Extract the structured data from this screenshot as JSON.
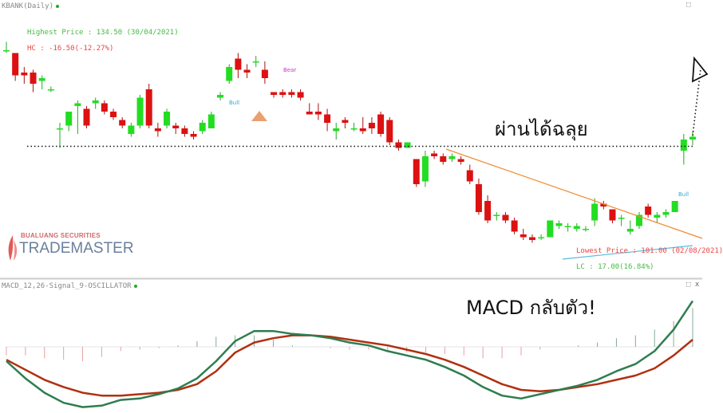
{
  "header": {
    "symbol_title": "KBANK(Daily)",
    "macd_title": "MACD_12,26",
    "signal_title": "Signal_9",
    "osc_title": "OSCILLATOR",
    "panel_buttons": "⬚ x"
  },
  "annotations": {
    "highest_price": "Highest Price : 134.50 (30/04/2021)",
    "hc": "HC : -16.50(-12.27%)",
    "lowest_price": "Lowest Price : 101.00 (02/08/2021)",
    "lc": "LC : 17.00(16.84%)",
    "thai_breakout": "ผ่านได้ฉลุย",
    "macd_turn": "MACD กลับตัว!",
    "bull": "Bull",
    "bear": "Bear"
  },
  "logo": {
    "company": "BUALUANG SECURITIES",
    "product": "TRADEMASTER"
  },
  "colors": {
    "up": "#22dd22",
    "down": "#dd1111",
    "trendline": "#f08a30",
    "support": "#55bbdd",
    "macd": "#2e7d4f",
    "signal": "#b03010",
    "osc_pos": "#88aa99",
    "osc_neg": "#e8a0a0",
    "green_text": "#44bb44",
    "red_text": "#ee4444"
  },
  "chart_data": [
    {
      "type": "candlestick",
      "title": "KBANK(Daily)",
      "ylim": [
        98,
        140
      ],
      "candles": [
        [
          135.0,
          136.5,
          134.5,
          135.0
        ],
        [
          134.5,
          134.5,
          129.5,
          130.5
        ],
        [
          131.0,
          132.0,
          129.0,
          130.5
        ],
        [
          131.0,
          131.5,
          127.5,
          129.0
        ],
        [
          129.5,
          130.5,
          128.0,
          130.0
        ],
        [
          128.0,
          128.5,
          127.5,
          128.0
        ],
        [
          121.0,
          122.0,
          117.5,
          121.0
        ],
        [
          121.5,
          124.0,
          120.5,
          124.0
        ],
        [
          125.0,
          126.0,
          120.0,
          125.5
        ],
        [
          124.5,
          125.0,
          121.0,
          121.5
        ],
        [
          125.5,
          126.5,
          124.5,
          126.0
        ],
        [
          125.5,
          126.0,
          123.5,
          124.0
        ],
        [
          124.0,
          124.5,
          122.5,
          123.0
        ],
        [
          122.5,
          123.0,
          121.0,
          121.5
        ],
        [
          120.0,
          122.0,
          119.5,
          121.5
        ],
        [
          121.5,
          127.0,
          121.0,
          126.5
        ],
        [
          128.0,
          129.0,
          121.0,
          121.5
        ],
        [
          121.0,
          122.0,
          119.5,
          120.5
        ],
        [
          121.5,
          124.5,
          121.0,
          124.0
        ],
        [
          121.5,
          122.0,
          120.0,
          121.0
        ],
        [
          121.0,
          121.5,
          119.5,
          120.0
        ],
        [
          120.0,
          120.5,
          119.0,
          119.5
        ],
        [
          120.5,
          122.5,
          120.0,
          122.0
        ],
        [
          121.0,
          124.0,
          121.0,
          123.5
        ],
        [
          126.5,
          127.5,
          126.0,
          127.0
        ],
        [
          129.5,
          132.5,
          129.0,
          132.0
        ],
        [
          133.5,
          134.5,
          130.0,
          131.5
        ],
        [
          131.5,
          132.5,
          130.0,
          131.0
        ],
        [
          133.0,
          134.0,
          132.0,
          133.0
        ],
        [
          131.5,
          133.0,
          129.0,
          130.0
        ],
        [
          127.5,
          127.5,
          126.5,
          127.0
        ],
        [
          127.5,
          128.0,
          126.5,
          127.0
        ],
        [
          127.5,
          128.0,
          126.5,
          127.0
        ],
        [
          127.5,
          128.0,
          126.0,
          126.5
        ],
        [
          124.0,
          125.5,
          123.5,
          123.5
        ],
        [
          124.0,
          125.5,
          122.5,
          123.5
        ],
        [
          123.5,
          124.5,
          120.5,
          122.0
        ],
        [
          120.5,
          122.0,
          119.0,
          121.0
        ],
        [
          122.5,
          123.0,
          121.0,
          122.0
        ],
        [
          121.0,
          122.0,
          120.5,
          121.0
        ],
        [
          121.0,
          123.0,
          120.0,
          120.5
        ],
        [
          122.0,
          123.0,
          120.0,
          121.0
        ],
        [
          123.5,
          124.0,
          119.5,
          120.0
        ],
        [
          122.5,
          123.0,
          118.0,
          118.5
        ],
        [
          118.5,
          119.0,
          117.0,
          117.5
        ],
        [
          117.5,
          118.5,
          117.5,
          118.5
        ],
        [
          115.5,
          115.5,
          110.5,
          111.0
        ],
        [
          111.5,
          117.0,
          110.5,
          116.0
        ],
        [
          116.5,
          117.0,
          115.5,
          116.0
        ],
        [
          116.0,
          116.5,
          114.5,
          115.0
        ],
        [
          115.5,
          116.5,
          115.0,
          116.0
        ],
        [
          115.5,
          116.0,
          114.5,
          115.0
        ],
        [
          113.5,
          114.5,
          111.0,
          111.5
        ],
        [
          111.0,
          112.0,
          105.5,
          106.0
        ],
        [
          108.0,
          109.0,
          104.0,
          104.5
        ],
        [
          105.5,
          106.0,
          104.5,
          105.5
        ],
        [
          105.5,
          106.0,
          104.0,
          104.5
        ],
        [
          104.5,
          105.0,
          102.0,
          102.5
        ],
        [
          102.0,
          103.0,
          101.0,
          101.5
        ],
        [
          101.5,
          102.0,
          100.5,
          101.0
        ],
        [
          101.5,
          102.0,
          101.0,
          101.5
        ],
        [
          101.5,
          104.5,
          101.5,
          104.5
        ],
        [
          103.5,
          104.5,
          103.0,
          104.0
        ],
        [
          103.5,
          104.0,
          102.5,
          103.5
        ],
        [
          103.0,
          104.0,
          102.5,
          103.5
        ],
        [
          103.0,
          103.5,
          102.5,
          103.0
        ],
        [
          104.5,
          108.5,
          103.5,
          107.5
        ],
        [
          107.5,
          108.0,
          106.5,
          107.0
        ],
        [
          106.5,
          106.5,
          104.0,
          104.5
        ],
        [
          105.0,
          105.5,
          103.5,
          105.0
        ],
        [
          102.5,
          104.5,
          102.0,
          103.0
        ],
        [
          103.5,
          106.0,
          103.0,
          105.5
        ],
        [
          107.0,
          107.5,
          105.0,
          105.5
        ],
        [
          105.0,
          106.0,
          104.0,
          105.5
        ],
        [
          105.5,
          106.5,
          105.0,
          106.0
        ],
        [
          106.0,
          108.0,
          106.0,
          108.0
        ],
        [
          117.0,
          120.0,
          114.5,
          119.0
        ],
        [
          119.0,
          120.5,
          118.0,
          119.5
        ]
      ]
    },
    {
      "type": "line",
      "title": "MACD_12,26 / Signal_9 / OSCILLATOR",
      "ylim": [
        -4.5,
        3.5
      ],
      "series": [
        {
          "name": "MACD_12,26",
          "values": [
            -1.0,
            -2.2,
            -3.2,
            -3.9,
            -4.2,
            -4.1,
            -3.7,
            -3.6,
            -3.3,
            -2.9,
            -2.2,
            -1.0,
            0.4,
            1.1,
            1.1,
            0.9,
            0.8,
            0.6,
            0.3,
            0.1,
            -0.3,
            -0.6,
            -0.9,
            -1.4,
            -2.0,
            -2.8,
            -3.4,
            -3.6,
            -3.3,
            -3.0,
            -2.7,
            -2.3,
            -1.7,
            -1.2,
            -0.3,
            1.2,
            3.2
          ]
        },
        {
          "name": "Signal_9",
          "values": [
            -0.9,
            -1.6,
            -2.3,
            -2.8,
            -3.2,
            -3.4,
            -3.4,
            -3.3,
            -3.2,
            -3.0,
            -2.6,
            -1.7,
            -0.4,
            0.3,
            0.6,
            0.8,
            0.8,
            0.7,
            0.5,
            0.3,
            0.1,
            -0.2,
            -0.5,
            -0.9,
            -1.4,
            -2.0,
            -2.6,
            -3.0,
            -3.1,
            -3.0,
            -2.8,
            -2.6,
            -2.3,
            -2.0,
            -1.5,
            -0.6,
            0.5
          ]
        },
        {
          "name": "OSCILLATOR",
          "values": [
            -0.6,
            -0.6,
            -0.8,
            -0.9,
            -1.0,
            -0.7,
            -0.3,
            -0.2,
            -0.1,
            0.1,
            0.4,
            0.7,
            0.8,
            0.8,
            0.5,
            0.1,
            0.0,
            -0.1,
            -0.2,
            -0.2,
            -0.3,
            -0.4,
            -0.4,
            -0.5,
            -0.6,
            -0.8,
            -0.8,
            -0.6,
            -0.2,
            0.0,
            0.1,
            0.3,
            0.6,
            0.8,
            1.2,
            1.8,
            2.7
          ]
        }
      ]
    }
  ]
}
